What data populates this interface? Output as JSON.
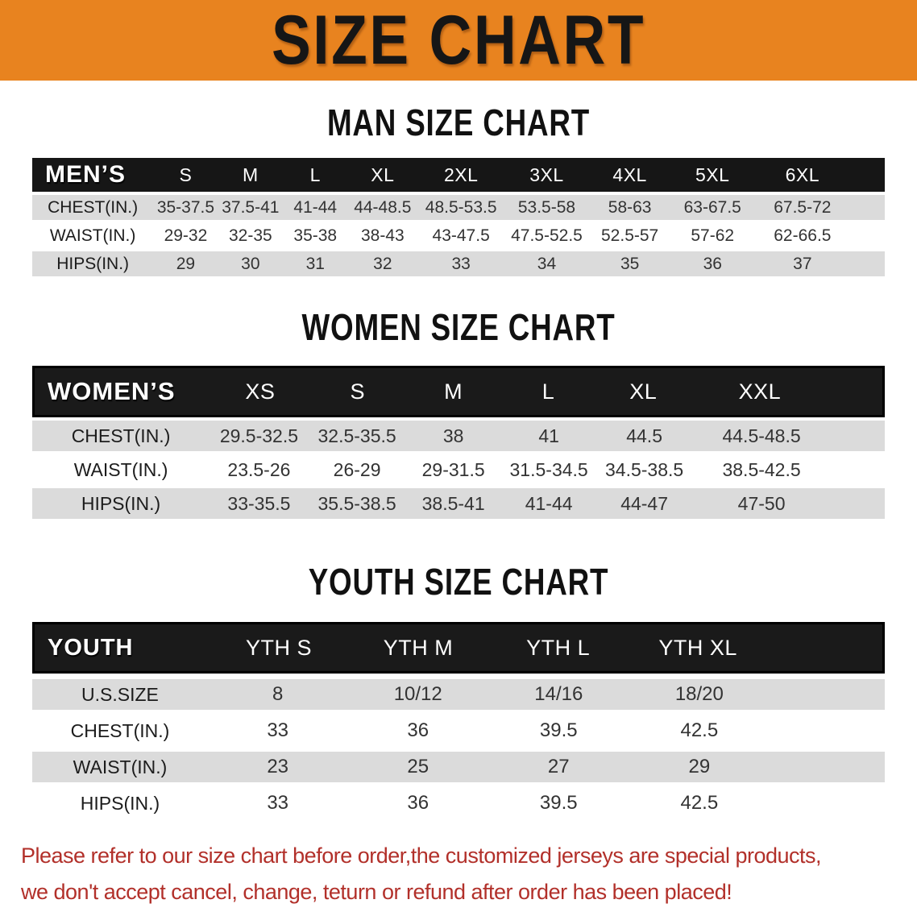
{
  "banner": {
    "title": "SIZE CHART"
  },
  "colors": {
    "banner_bg": "#E8831F",
    "banner_text": "#161616",
    "table_header_bg": "#161616",
    "row_gray": "#DBDBDB",
    "row_white": "#FFFFFF",
    "footer_red": "#B2302A"
  },
  "sections": [
    {
      "heading": "MAN SIZE CHART",
      "table": {
        "corner_label": "MEN’S",
        "columns": [
          "S",
          "M",
          "L",
          "XL",
          "2XL",
          "3XL",
          "4XL",
          "5XL",
          "6XL"
        ],
        "rows": [
          {
            "label": "CHEST(IN.)",
            "values": [
              "35-37.5",
              "37.5-41",
              "41-44",
              "44-48.5",
              "48.5-53.5",
              "53.5-58",
              "58-63",
              "63-67.5",
              "67.5-72"
            ]
          },
          {
            "label": "WAIST(IN.)",
            "values": [
              "29-32",
              "32-35",
              "35-38",
              "38-43",
              "43-47.5",
              "47.5-52.5",
              "52.5-57",
              "57-62",
              "62-66.5"
            ]
          },
          {
            "label": "HIPS(IN.)",
            "values": [
              "29",
              "30",
              "31",
              "32",
              "33",
              "34",
              "35",
              "36",
              "37"
            ]
          }
        ]
      }
    },
    {
      "heading": "WOMEN SIZE CHART",
      "table": {
        "corner_label": "WOMEN’S",
        "columns": [
          "XS",
          "S",
          "M",
          "L",
          "XL",
          "XXL"
        ],
        "rows": [
          {
            "label": "CHEST(IN.)",
            "values": [
              "29.5-32.5",
              "32.5-35.5",
              "38",
              "41",
              "44.5",
              "44.5-48.5"
            ]
          },
          {
            "label": "WAIST(IN.)",
            "values": [
              "23.5-26",
              "26-29",
              "29-31.5",
              "31.5-34.5",
              "34.5-38.5",
              "38.5-42.5"
            ]
          },
          {
            "label": "HIPS(IN.)",
            "values": [
              "33-35.5",
              "35.5-38.5",
              "38.5-41",
              "41-44",
              "44-47",
              "47-50"
            ]
          }
        ]
      }
    },
    {
      "heading": "YOUTH SIZE CHART",
      "table": {
        "corner_label": "YOUTH",
        "columns": [
          "YTH S",
          "YTH M",
          "YTH L",
          "YTH XL"
        ],
        "rows": [
          {
            "label": "U.S.SIZE",
            "values": [
              "8",
              "10/12",
              "14/16",
              "18/20"
            ]
          },
          {
            "label": "CHEST(IN.)",
            "values": [
              "33",
              "36",
              "39.5",
              "42.5"
            ]
          },
          {
            "label": "WAIST(IN.)",
            "values": [
              "23",
              "25",
              "27",
              "29"
            ]
          },
          {
            "label": "HIPS(IN.)",
            "values": [
              "33",
              "36",
              "39.5",
              "42.5"
            ]
          }
        ]
      }
    }
  ],
  "footer": {
    "line1": "Please refer to our size chart before order,the customized jerseys are special products,",
    "line2": "we don't accept cancel, change, teturn or refund after order has been placed!"
  }
}
